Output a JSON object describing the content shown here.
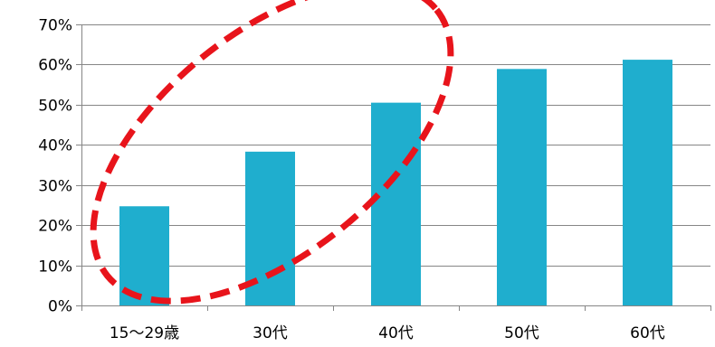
{
  "chart_data": {
    "type": "bar",
    "title": "",
    "xlabel": "",
    "ylabel": "",
    "categories": [
      "15～29歳",
      "30代",
      "40代",
      "50代",
      "60代"
    ],
    "values": [
      24.7,
      38.3,
      50.5,
      58.9,
      61.2
    ],
    "ylim": [
      0,
      70
    ],
    "y_ticks": [
      0,
      10,
      20,
      30,
      40,
      50,
      60,
      70
    ],
    "y_tick_format": "percent",
    "grid": true,
    "legend": "none",
    "colors": {
      "bar": "#1FAECE",
      "grid": "#868686",
      "axis": "#868686",
      "annotation": "#E8141B"
    },
    "annotation": {
      "shape": "dashed-ellipse",
      "encircles": [
        "15～29歳",
        "30代",
        "40代"
      ]
    }
  }
}
